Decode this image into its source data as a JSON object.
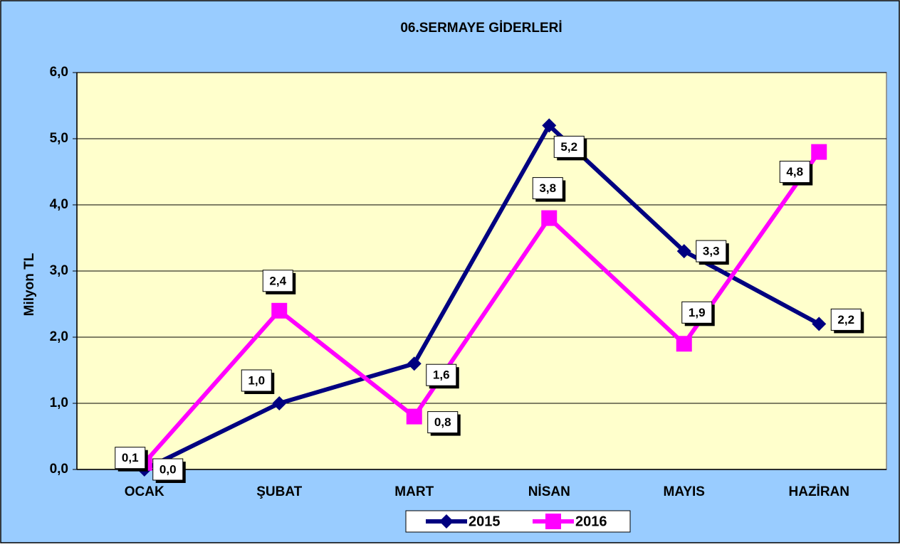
{
  "chart_data": {
    "type": "line",
    "title": "06.SERMAYE GİDERLERİ",
    "y_label": "Milyon TL",
    "categories": [
      "OCAK",
      "ŞUBAT",
      "MART",
      "NİSAN",
      "MAYIS",
      "HAZİRAN"
    ],
    "series": [
      {
        "name": "2015",
        "color": "#000080",
        "values": [
          0.0,
          1.0,
          1.6,
          5.2,
          3.3,
          2.2
        ],
        "value_labels": [
          "0,0",
          "1,0",
          "1,6",
          "5,2",
          "3,3",
          "2,2"
        ]
      },
      {
        "name": "2016",
        "color": "#ff00ff",
        "values": [
          0.1,
          2.4,
          0.8,
          3.8,
          1.9,
          4.8
        ],
        "value_labels": [
          "0,1",
          "2,4",
          "0,8",
          "3,8",
          "1,9",
          "4,8"
        ]
      }
    ],
    "ylim": [
      0,
      6
    ],
    "yticks": [
      {
        "value": 0,
        "label": "0,0"
      },
      {
        "value": 1,
        "label": "1,0"
      },
      {
        "value": 2,
        "label": "2,0"
      },
      {
        "value": 3,
        "label": "3,0"
      },
      {
        "value": 4,
        "label": "4,0"
      },
      {
        "value": 5,
        "label": "5,0"
      },
      {
        "value": 6,
        "label": "6,0"
      }
    ],
    "grid": true,
    "legend": "bottom"
  }
}
